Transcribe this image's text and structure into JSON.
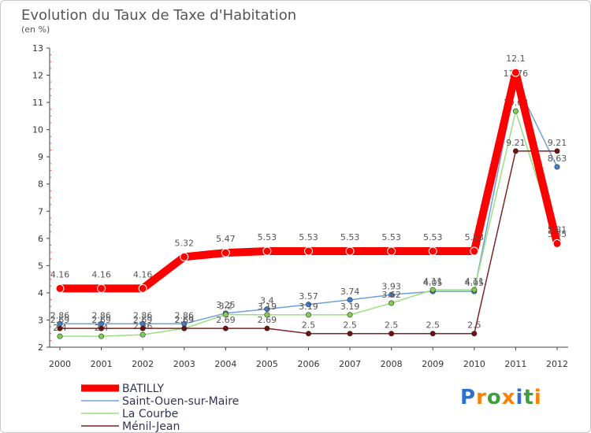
{
  "chart_data": {
    "type": "line",
    "title": "Evolution du Taux de Taxe d'Habitation",
    "ylabel": "(en %)",
    "xlabel": "",
    "categories": [
      "2000",
      "2001",
      "2002",
      "2003",
      "2004",
      "2005",
      "2006",
      "2007",
      "2008",
      "2009",
      "2010",
      "2011",
      "2012"
    ],
    "ylim": [
      2,
      13
    ],
    "yticks": [
      2,
      3,
      4,
      5,
      6,
      7,
      8,
      9,
      10,
      11,
      12,
      13
    ],
    "grid": false,
    "legend_position": "bottom-left",
    "series": [
      {
        "name": "BATILLY",
        "color": "#ff0000",
        "emphasis": true,
        "values": [
          4.16,
          4.16,
          4.16,
          5.32,
          5.47,
          5.53,
          5.53,
          5.53,
          5.53,
          5.53,
          5.53,
          12.1,
          5.81
        ]
      },
      {
        "name": "Saint-Ouen-sur-Maire",
        "color": "#6f9fd5",
        "marker": "#3f7fd0",
        "values": [
          2.86,
          2.86,
          2.86,
          2.86,
          3.25,
          3.4,
          3.57,
          3.74,
          3.93,
          4.05,
          4.05,
          11.76,
          8.63
        ]
      },
      {
        "name": "La Courbe",
        "color": "#99e07f",
        "marker": "#7fd04f",
        "values": [
          2.4,
          2.4,
          2.46,
          2.69,
          3.2,
          3.19,
          3.19,
          3.19,
          3.62,
          4.11,
          4.11,
          10.68,
          5.85
        ]
      },
      {
        "name": "Ménil-Jean",
        "color": "#7f2424",
        "marker": "#6f1010",
        "values": [
          2.69,
          2.69,
          2.69,
          2.69,
          2.69,
          2.69,
          2.5,
          2.5,
          2.5,
          2.5,
          2.5,
          9.21,
          9.21
        ]
      }
    ]
  },
  "logo": {
    "text": "Proxiti",
    "letter_colors": [
      "#2f6fd0",
      "#ff7f00",
      "#3f9f3f",
      "#ff7f00",
      "#2f6fd0",
      "#3f9f3f",
      "#ff7f00"
    ]
  }
}
